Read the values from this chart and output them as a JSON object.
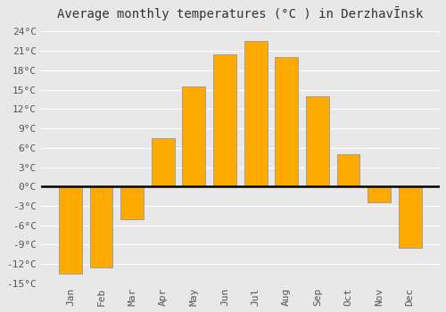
{
  "title": "Average monthly temperatures (°C ) in DerzhavĪnsk",
  "months": [
    "Jan",
    "Feb",
    "Mar",
    "Apr",
    "May",
    "Jun",
    "Jul",
    "Aug",
    "Sep",
    "Oct",
    "Nov",
    "Dec"
  ],
  "values": [
    -13.5,
    -12.5,
    -5.0,
    7.5,
    15.5,
    20.5,
    22.5,
    20.0,
    14.0,
    5.0,
    -2.5,
    -9.5
  ],
  "bar_color": "#FFAA00",
  "bar_edge_color": "#999999",
  "background_color": "#E8E8E8",
  "grid_color": "#FFFFFF",
  "ylim": [
    -15,
    25
  ],
  "yticks": [
    -15,
    -12,
    -9,
    -6,
    -3,
    0,
    3,
    6,
    9,
    12,
    15,
    18,
    21,
    24
  ],
  "ytick_labels": [
    "-15°C",
    "-12°C",
    "-9°C",
    "-6°C",
    "-3°C",
    "0°C",
    "3°C",
    "6°C",
    "9°C",
    "12°C",
    "15°C",
    "18°C",
    "21°C",
    "24°C"
  ],
  "zero_line_color": "#000000",
  "title_fontsize": 10,
  "tick_fontsize": 8
}
